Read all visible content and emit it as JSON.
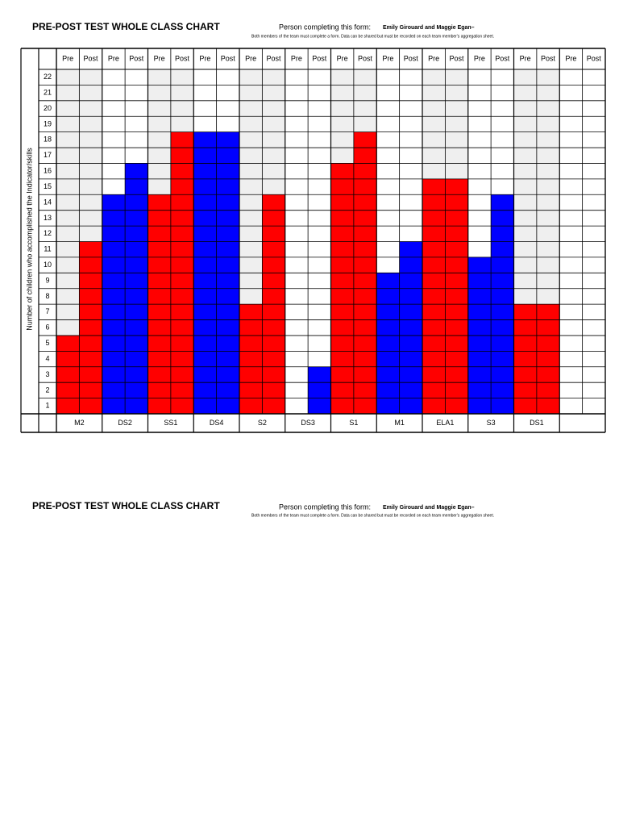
{
  "section1": {
    "title": "PRE-POST TEST WHOLE CLASS CHART",
    "person_label": "Person completing this form:",
    "person_names": "Emily Girouard and Maggie Egan–",
    "note": "Both members of the team must complete a form.  Data can be shared but must be recorded on each team member's aggregation sheet.",
    "chart_data": {
      "type": "grid-bar",
      "y_label": "Number of children who accomplished the Indicator/skills",
      "categories": [
        "M2",
        "DS2",
        "SS1",
        "DS4",
        "S2",
        "DS3",
        "S1",
        "M1",
        "ELA1",
        "S3",
        "DS1",
        null
      ],
      "colors": [
        "#ff0000",
        "#0000ff",
        "#ff0000",
        "#0000ff",
        "#ff0000",
        "#0000ff",
        "#ff0000",
        "#0000ff",
        "#ff0000",
        "#0000ff",
        "#ff0000",
        null
      ],
      "series": [
        {
          "name": "Pre",
          "values": [
            5,
            14,
            14,
            18,
            7,
            0,
            16,
            9,
            15,
            10,
            7,
            null
          ]
        },
        {
          "name": "Post",
          "values": [
            11,
            16,
            18,
            18,
            14,
            3,
            18,
            11,
            15,
            14,
            7,
            null
          ]
        }
      ],
      "ylim": [
        0,
        22
      ],
      "yticks": [
        1,
        2,
        3,
        4,
        5,
        6,
        7,
        8,
        9,
        10,
        11,
        12,
        13,
        14,
        15,
        16,
        17,
        18,
        19,
        20,
        21,
        22
      ],
      "shade": "#efefef"
    }
  },
  "section2": {
    "title": "PRE-POST TEST WHOLE CLASS CHART",
    "person_label": "Person completing this form:",
    "person_names": "Emily Girouard and Maggie Egan–",
    "note": "Both members of the team must complete a form.  Data can be shared but must be recorded on each team member's aggregation sheet."
  }
}
